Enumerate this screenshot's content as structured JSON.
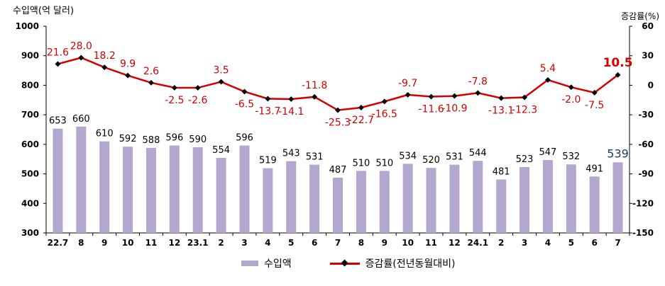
{
  "chart_data": {
    "type": "bar",
    "ylabel": "수입액(억 달러)",
    "y2label": "증감률(%)",
    "categories": [
      "22.7",
      "8",
      "9",
      "10",
      "11",
      "12",
      "23.1",
      "2",
      "3",
      "4",
      "5",
      "6",
      "7",
      "8",
      "9",
      "10",
      "11",
      "12",
      "24.1",
      "2",
      "3",
      "4",
      "5",
      "6",
      "7"
    ],
    "ylim": [
      300,
      1000
    ],
    "y_ticks": [
      "300",
      "400",
      "500",
      "600",
      "700",
      "800",
      "900",
      "1000"
    ],
    "y2lim": [
      -150,
      60
    ],
    "y2_ticks": [
      "60",
      "30",
      "0",
      "-30",
      "-60",
      "-90",
      "-120",
      "-150"
    ],
    "series": [
      {
        "name": "수입액",
        "type": "bar",
        "color": "#b4a7cf",
        "values": [
          653,
          660,
          610,
          592,
          588,
          596,
          590,
          554,
          596,
          519,
          543,
          531,
          487,
          510,
          510,
          534,
          520,
          531,
          544,
          481,
          523,
          547,
          532,
          491,
          539
        ],
        "labels": [
          "653",
          "660",
          "610",
          "592",
          "588",
          "596",
          "590",
          "554",
          "596",
          "519",
          "543",
          "531",
          "487",
          "510",
          "510",
          "534",
          "520",
          "531",
          "544",
          "481",
          "523",
          "547",
          "532",
          "491",
          "539"
        ]
      },
      {
        "name": "증감률(전년동월대비)",
        "type": "line",
        "axis": "right",
        "color": "#d40000",
        "values": [
          21.6,
          28.0,
          18.2,
          9.9,
          2.6,
          -2.5,
          -2.6,
          3.5,
          -6.5,
          -13.7,
          -14.1,
          -11.8,
          -25.3,
          -22.7,
          -16.5,
          -9.7,
          -11.6,
          -10.9,
          -7.8,
          -13.1,
          -12.3,
          5.4,
          -2.0,
          -7.5,
          10.5
        ],
        "labels": [
          "21.6",
          "28.0",
          "18.2",
          "9.9",
          "2.6",
          "-2.5",
          "-2.6",
          "3.5",
          "-6.5",
          "-13.7",
          "-14.1",
          "-11.8",
          "-25.3",
          "-22.7",
          "-16.5",
          "-9.7",
          "-11.6",
          "-10.9",
          "-7.8",
          "-13.1",
          "-12.3",
          "5.4",
          "-2.0",
          "-7.5",
          "10.5"
        ]
      }
    ],
    "legend": {
      "position": "bottom",
      "bar_label": "수입액",
      "line_label": "증감률(전년동월대비)"
    },
    "grid": false
  }
}
